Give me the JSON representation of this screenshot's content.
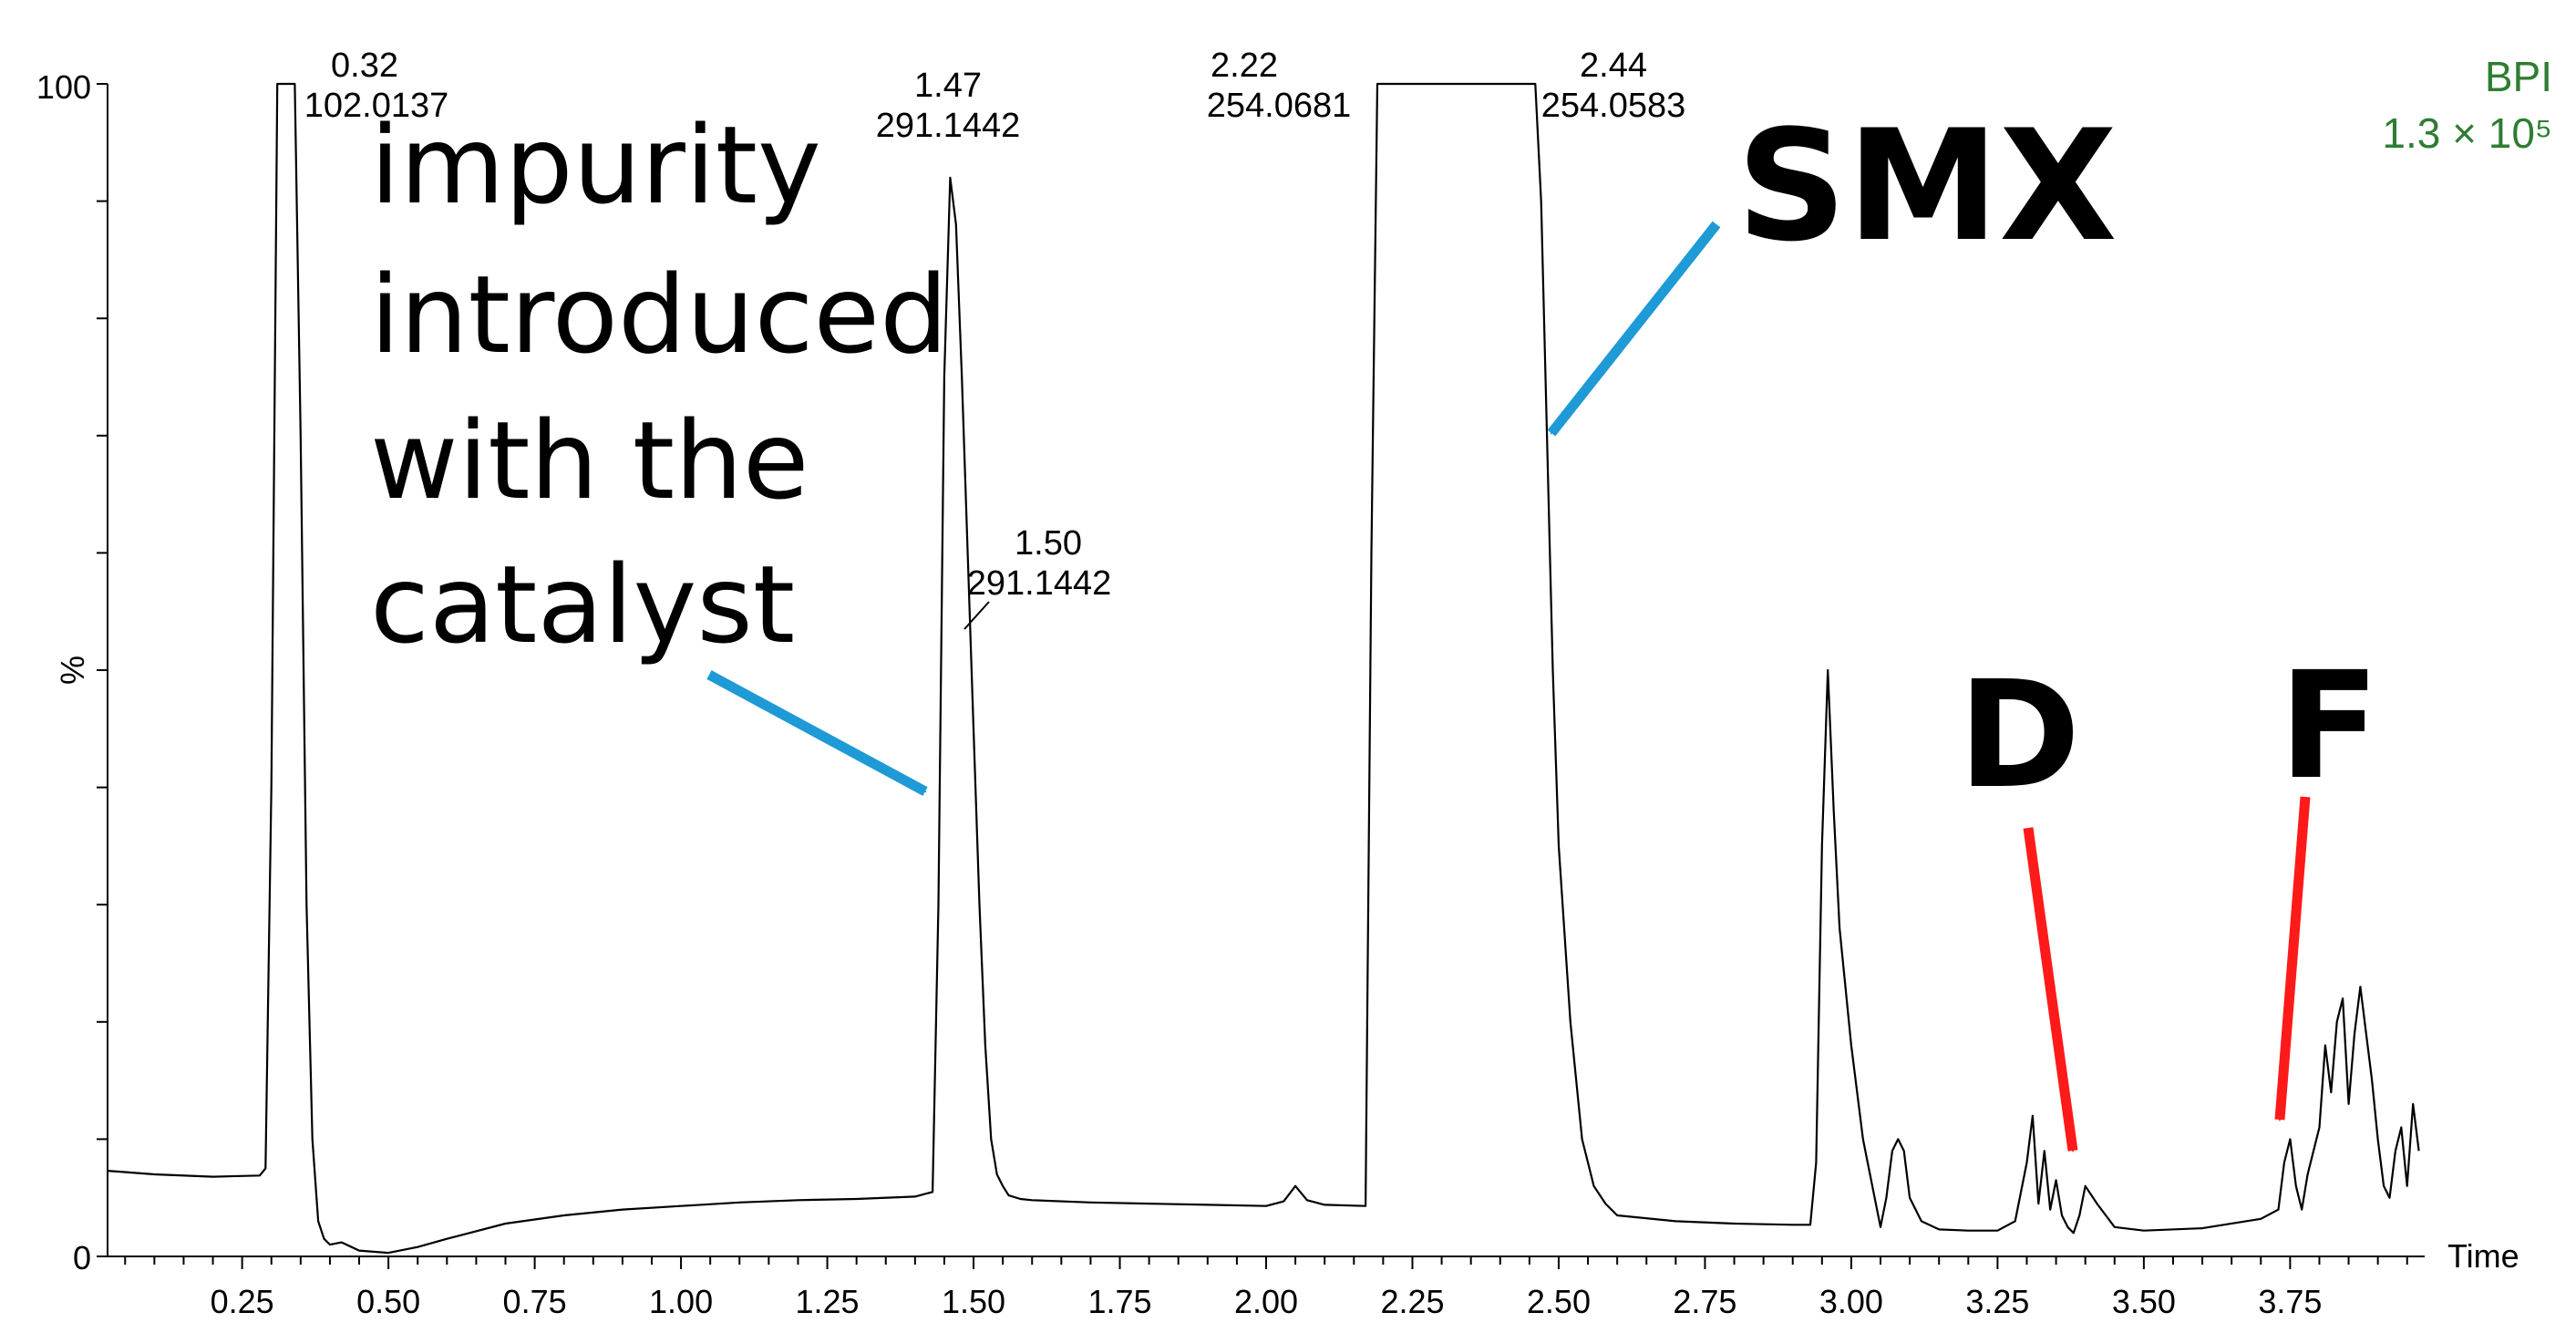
{
  "chart_data": {
    "type": "line",
    "title": "",
    "xlabel": "Time",
    "ylabel": "%",
    "xlim": [
      0.02,
      3.98
    ],
    "ylim": [
      0,
      100
    ],
    "x_ticks": [
      "0.25",
      "0.50",
      "0.75",
      "1.00",
      "1.25",
      "1.50",
      "1.75",
      "2.00",
      "2.25",
      "2.50",
      "2.75",
      "3.00",
      "3.25",
      "3.50",
      "3.75"
    ],
    "y_ticks": [
      "0",
      "100"
    ],
    "legend": {
      "label": "BPI",
      "scale": "1.3 × 10⁵",
      "color": "#2e7d32",
      "placement": "top-right"
    },
    "series": [
      {
        "color": "#000000",
        "x": [
          0.02,
          0.1,
          0.2,
          0.28,
          0.29,
          0.3,
          0.31,
          0.32,
          0.34,
          0.35,
          0.36,
          0.37,
          0.38,
          0.39,
          0.4,
          0.42,
          0.45,
          0.5,
          0.55,
          0.6,
          0.7,
          0.8,
          0.9,
          1.0,
          1.1,
          1.2,
          1.3,
          1.4,
          1.43,
          1.44,
          1.45,
          1.46,
          1.47,
          1.48,
          1.49,
          1.5,
          1.51,
          1.52,
          1.53,
          1.54,
          1.55,
          1.56,
          1.58,
          1.6,
          1.7,
          1.8,
          1.9,
          2.0,
          2.03,
          2.05,
          2.07,
          2.1,
          2.17,
          2.18,
          2.19,
          2.2,
          2.22,
          2.3,
          2.4,
          2.44,
          2.46,
          2.47,
          2.48,
          2.49,
          2.5,
          2.52,
          2.54,
          2.56,
          2.58,
          2.6,
          2.7,
          2.8,
          2.9,
          2.93,
          2.94,
          2.95,
          2.96,
          2.97,
          2.98,
          3.0,
          3.02,
          3.04,
          3.05,
          3.06,
          3.07,
          3.08,
          3.09,
          3.1,
          3.12,
          3.15,
          3.2,
          3.25,
          3.28,
          3.3,
          3.31,
          3.32,
          3.33,
          3.34,
          3.35,
          3.36,
          3.37,
          3.38,
          3.39,
          3.4,
          3.42,
          3.45,
          3.5,
          3.6,
          3.7,
          3.73,
          3.74,
          3.75,
          3.76,
          3.77,
          3.78,
          3.8,
          3.81,
          3.82,
          3.83,
          3.84,
          3.85,
          3.86,
          3.87,
          3.88,
          3.89,
          3.9,
          3.91,
          3.92,
          3.93,
          3.94,
          3.95,
          3.96,
          3.97
        ],
        "y": [
          7.3,
          7,
          6.8,
          6.9,
          7.5,
          40,
          100,
          100,
          100,
          70,
          30,
          10,
          3,
          1.5,
          1,
          1.2,
          0.5,
          0.3,
          0.8,
          1.5,
          2.8,
          3.5,
          4,
          4.3,
          4.6,
          4.8,
          4.9,
          5.1,
          5.5,
          30,
          75,
          92,
          88,
          75,
          60,
          45,
          30,
          18,
          10,
          7,
          6,
          5.2,
          4.9,
          4.8,
          4.6,
          4.5,
          4.4,
          4.3,
          4.7,
          6,
          4.8,
          4.4,
          4.3,
          60,
          100,
          100,
          100,
          100,
          100,
          100,
          100,
          90,
          70,
          50,
          35,
          20,
          10,
          6,
          4.5,
          3.5,
          3,
          2.8,
          2.7,
          2.7,
          8,
          35,
          50,
          38,
          28,
          18,
          10,
          5,
          2.5,
          5,
          9,
          10,
          9,
          5,
          3,
          2.3,
          2.2,
          2.2,
          3,
          8,
          12,
          4.5,
          9,
          4,
          6.5,
          3.5,
          2.5,
          2,
          3.5,
          6,
          4.5,
          2.5,
          2.2,
          2.4,
          3.2,
          4,
          8,
          10,
          6,
          4,
          7,
          11,
          18,
          14,
          20,
          22,
          13,
          19,
          23,
          19,
          15,
          10,
          6,
          5,
          9,
          11,
          6,
          13,
          9
        ]
      }
    ],
    "peak_labels": [
      {
        "time": "0.32",
        "mz": "102.0137"
      },
      {
        "time": "1.47",
        "mz": "291.1442"
      },
      {
        "time": "1.50",
        "mz": "291.1442"
      },
      {
        "time": "2.22",
        "mz": "254.0681"
      },
      {
        "time": "2.44",
        "mz": "254.0583"
      }
    ],
    "annotations": {
      "impurity_lines": [
        "impurity",
        "introduced",
        "with the",
        "catalyst"
      ],
      "smx": "SMX",
      "d": "D",
      "f": "F"
    }
  }
}
